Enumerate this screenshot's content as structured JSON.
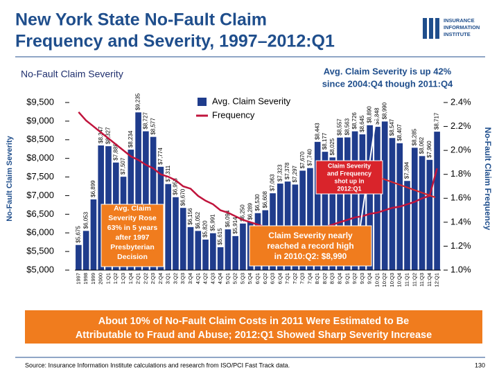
{
  "header": {
    "title_lines": [
      "New York State No-Fault Claim",
      "Frequency and Severity, 1997–2012:Q1"
    ],
    "logo_lines": [
      "INSURANCE",
      "INFORMATION",
      "INSTITUTE"
    ]
  },
  "chart_data": {
    "type": "bar",
    "subtitle": "No-Fault Claim Severity",
    "ylabel": "No-Fault Claim Severity",
    "y2label": "No-Fault Claim Frequency",
    "categories": [
      "1997",
      "1998",
      "1999",
      "2000",
      "1:Q1",
      "1:Q2",
      "1:Q3",
      "1:Q4",
      "2:Q1",
      "2:Q2",
      "2:Q3",
      "2:Q4",
      "3:Q1",
      "3:Q2",
      "3:Q3",
      "3:Q4",
      "4:Q1",
      "4:Q2",
      "4:Q3",
      "4:Q4",
      "5:Q1",
      "5:Q2",
      "5:Q3",
      "5:Q4",
      "6:Q1",
      "6:Q2",
      "6:Q3",
      "6:Q4",
      "7:Q1",
      "7:Q2",
      "7:Q3",
      "7:Q4",
      "8:Q1",
      "8:Q2",
      "8:Q3",
      "8:Q4",
      "9:Q1",
      "9:Q2",
      "9:Q3",
      "9:Q4",
      "10:Q1",
      "10:Q2",
      "10:Q3",
      "10:Q4",
      "11:Q1",
      "11:Q2",
      "11:Q3",
      "11:Q4",
      "12:Q1"
    ],
    "series": [
      {
        "name": "Avg. Claim Severity",
        "color": "#1f3c8c",
        "values": [
          5675,
          6053,
          6899,
          8347,
          8327,
          7888,
          7507,
          8234,
          9235,
          8727,
          8577,
          7774,
          7311,
          6958,
          6670,
          6156,
          6052,
          5820,
          5991,
          5615,
          6094,
          5914,
          6250,
          6289,
          6530,
          6608,
          7063,
          7323,
          7378,
          7297,
          7670,
          7740,
          8443,
          8177,
          8025,
          8557,
          8563,
          8726,
          8645,
          8890,
          8848,
          8990,
          8547,
          8407,
          7394,
          8285,
          8062,
          7960,
          8717
        ],
        "value_labels": [
          "$5,675",
          "$6,053",
          "$6,899",
          "$8,347",
          "$8,327",
          "$7,888",
          "$7,507",
          "$8,234",
          "$9,235",
          "$8,727",
          "$8,577",
          "$7,774",
          "$7,311",
          "$6,958",
          "$6,670",
          "$6,156",
          "$6,052",
          "$5,820",
          "$5,991",
          "$5,615",
          "$6,094",
          "$5,914",
          "$6,250",
          "$6,289",
          "$6,530",
          "$6,608",
          "$7,063",
          "$7,323",
          "$7,378",
          "$7,297",
          "$7,670",
          "$7,740",
          "$8,443",
          "$8,177",
          "$8,025",
          "$8,557",
          "$8,563",
          "$8,726",
          "$8,645",
          "$8,890",
          "$8,848",
          "$8,990",
          "$8,547",
          "$8,407",
          "$7,394",
          "$8,285",
          "$8,062",
          "$7,960",
          "$8,717"
        ]
      },
      {
        "name": "Frequency",
        "color": "#c0143c",
        "axis": "y2",
        "values": [
          2.32,
          2.25,
          2.2,
          2.15,
          2.1,
          2.05,
          2.0,
          1.95,
          1.92,
          1.88,
          1.85,
          1.8,
          1.78,
          1.75,
          1.7,
          1.68,
          1.62,
          1.58,
          1.55,
          1.5,
          1.48,
          1.45,
          1.42,
          1.4,
          1.38,
          1.36,
          1.35,
          1.34,
          1.33,
          1.32,
          1.33,
          1.34,
          1.35,
          1.36,
          1.38,
          1.4,
          1.42,
          1.44,
          1.45,
          1.47,
          1.48,
          1.5,
          1.52,
          1.53,
          1.55,
          1.57,
          1.6,
          1.62,
          1.85
        ]
      }
    ],
    "ylim": [
      5000,
      9500
    ],
    "yticks": [
      {
        "value": 5000,
        "label": "$5,000"
      },
      {
        "value": 5500,
        "label": "$5,500"
      },
      {
        "value": 6000,
        "label": "$6,000"
      },
      {
        "value": 6500,
        "label": "$6,500"
      },
      {
        "value": 7000,
        "label": "$7,000"
      },
      {
        "value": 7500,
        "label": "$7,500"
      },
      {
        "value": 8000,
        "label": "$8,000"
      },
      {
        "value": 8500,
        "label": "$8,500"
      },
      {
        "value": 9000,
        "label": "$9,000"
      },
      {
        "value": 9500,
        "label": "$9,500"
      }
    ],
    "y2lim": [
      1.0,
      2.4
    ],
    "y2ticks": [
      {
        "value": 1.0,
        "label": "1.0%"
      },
      {
        "value": 1.2,
        "label": "1.2%"
      },
      {
        "value": 1.4,
        "label": "1.4%"
      },
      {
        "value": 1.6,
        "label": "1.6%"
      },
      {
        "value": 1.8,
        "label": "1.8%"
      },
      {
        "value": 2.0,
        "label": "2.0%"
      },
      {
        "value": 2.2,
        "label": "2.2%"
      },
      {
        "value": 2.4,
        "label": "2.4%"
      }
    ],
    "annotations": [
      {
        "lines": [
          "Avg. Claim Severity is up 42%",
          "since 2004:Q4 though 2011:Q4"
        ]
      },
      {
        "lines": [
          "Avg. Claim",
          "Severity Rose",
          "63% in 5 years",
          "after 1997",
          "Presbyterian",
          "Decision"
        ]
      },
      {
        "lines": [
          "Claim Severity nearly",
          "reached a record high",
          "in 2010:Q2: $8,990"
        ]
      },
      {
        "lines": [
          "Claim Severity",
          "and Frequency",
          "shot up in",
          "2012:Q1"
        ]
      }
    ]
  },
  "banner": {
    "lines": [
      "About 10% of No-Fault Claim Costs in 2011 Were Estimated to Be",
      "Attributable to Fraud and Abuse; 2012:Q1 Showed Sharp Severity Increase"
    ]
  },
  "footer": {
    "source": "Source: Insurance Information Institute calculations and research from ISO/PCI Fast Track data.",
    "page": "130"
  }
}
